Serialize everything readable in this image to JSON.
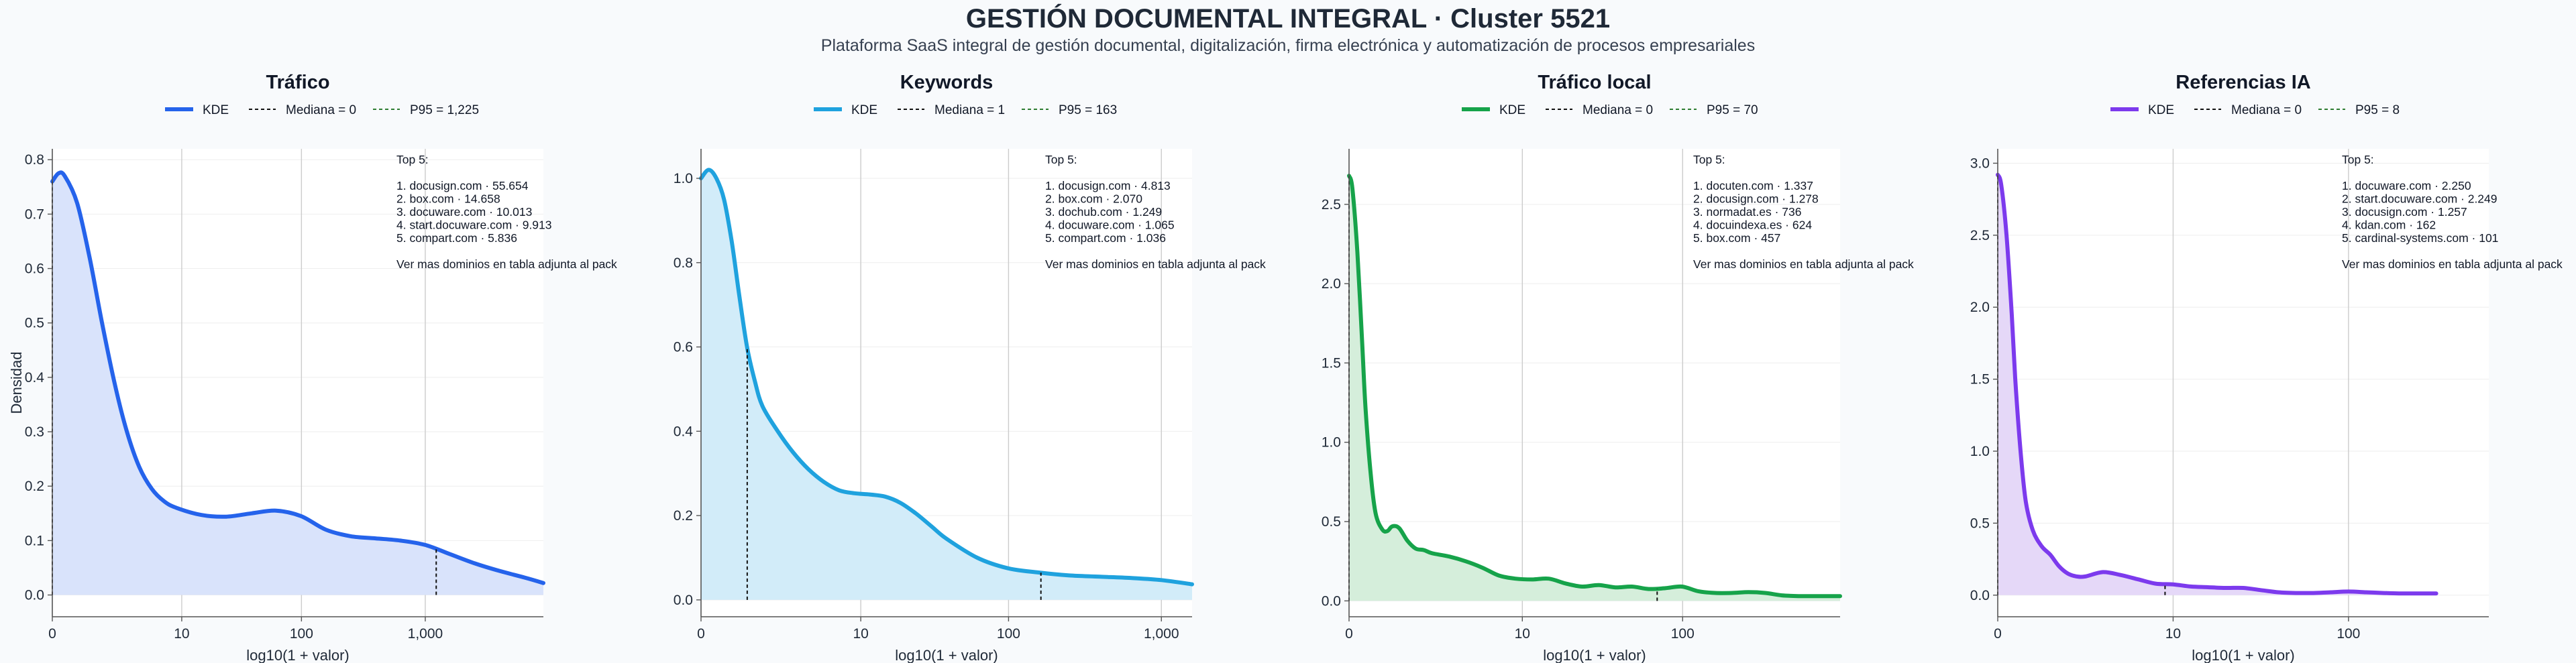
{
  "header": {
    "title": "GESTIÓN DOCUMENTAL INTEGRAL · Cluster 5521",
    "subtitle": "Plataforma SaaS integral de gestión documental, digitalización, firma electrónica y automatización de procesos empresariales"
  },
  "colors": {
    "background": "#f8fafc",
    "plot_background": "#ffffff",
    "grid": "#cccccc",
    "median_line": "#111111",
    "p95_line": "#2e7d32"
  },
  "chart_data": [
    {
      "type": "area",
      "title": "Tráfico",
      "color": "#2563eb",
      "fill": "#d9e3fb",
      "xlabel": "log10(1 + valor)",
      "ylabel": "Densidad",
      "xlim": [
        0,
        3.95
      ],
      "ylim": [
        -0.04,
        0.82
      ],
      "x_ticks": [
        {
          "pos": 0,
          "label": "0"
        },
        {
          "pos": 1.041,
          "label": "10"
        },
        {
          "pos": 2.004,
          "label": "100"
        },
        {
          "pos": 3.0,
          "label": "1,000"
        }
      ],
      "y_ticks": [
        0,
        0.1,
        0.2,
        0.3,
        0.4,
        0.5,
        0.6,
        0.7,
        0.8
      ],
      "y_tick_labels": [
        "0.0",
        "0.1",
        "0.2",
        "0.3",
        "0.4",
        "0.5",
        "0.6",
        "0.7",
        "0.8"
      ],
      "legend": {
        "kde": "KDE",
        "median": "Mediana = 0",
        "p95": "P95 = 1,225"
      },
      "median_x": 0,
      "p95_x": 3.088,
      "x": [
        0,
        0.05,
        0.1,
        0.2,
        0.3,
        0.4,
        0.5,
        0.6,
        0.7,
        0.8,
        0.9,
        1.0,
        1.2,
        1.4,
        1.6,
        1.8,
        2.0,
        2.2,
        2.4,
        2.6,
        2.8,
        3.0,
        3.2,
        3.4,
        3.6,
        3.8,
        3.95
      ],
      "y": [
        0.76,
        0.775,
        0.77,
        0.72,
        0.62,
        0.5,
        0.39,
        0.3,
        0.235,
        0.195,
        0.172,
        0.16,
        0.147,
        0.144,
        0.15,
        0.155,
        0.145,
        0.12,
        0.108,
        0.104,
        0.1,
        0.092,
        0.075,
        0.058,
        0.044,
        0.032,
        0.022
      ],
      "annotation": {
        "heading": "Top 5:",
        "items": [
          "1. docusign.com · 55.654",
          "2. box.com · 14.658",
          "3. docuware.com · 10.013",
          "4. start.docuware.com · 9.913",
          "5. compart.com · 5.836"
        ],
        "footer": "Ver mas dominios en tabla adjunta al pack"
      }
    },
    {
      "type": "area",
      "title": "Keywords",
      "color": "#1fa2de",
      "fill": "#d2ecf9",
      "xlabel": "log10(1 + valor)",
      "ylabel": "",
      "xlim": [
        0,
        3.2
      ],
      "ylim": [
        -0.04,
        1.07
      ],
      "x_ticks": [
        {
          "pos": 0,
          "label": "0"
        },
        {
          "pos": 1.041,
          "label": "10"
        },
        {
          "pos": 2.004,
          "label": "100"
        },
        {
          "pos": 3.0,
          "label": "1,000"
        }
      ],
      "y_ticks": [
        0,
        0.2,
        0.4,
        0.6,
        0.8,
        1.0
      ],
      "y_tick_labels": [
        "0.0",
        "0.2",
        "0.4",
        "0.6",
        "0.8",
        "1.0"
      ],
      "legend": {
        "kde": "KDE",
        "median": "Mediana = 1",
        "p95": "P95 = 163"
      },
      "median_x": 0.301,
      "p95_x": 2.215,
      "x": [
        0,
        0.05,
        0.1,
        0.15,
        0.2,
        0.25,
        0.3,
        0.35,
        0.4,
        0.5,
        0.6,
        0.7,
        0.8,
        0.9,
        1.0,
        1.1,
        1.2,
        1.3,
        1.4,
        1.5,
        1.6,
        1.8,
        2.0,
        2.2,
        2.4,
        2.6,
        2.8,
        3.0,
        3.2
      ],
      "y": [
        1.0,
        1.02,
        1.0,
        0.95,
        0.85,
        0.72,
        0.6,
        0.52,
        0.46,
        0.4,
        0.35,
        0.31,
        0.28,
        0.26,
        0.253,
        0.25,
        0.245,
        0.23,
        0.205,
        0.175,
        0.145,
        0.1,
        0.075,
        0.065,
        0.058,
        0.055,
        0.052,
        0.047,
        0.037
      ],
      "annotation": {
        "heading": "Top 5:",
        "items": [
          "1. docusign.com · 4.813",
          "2. box.com · 2.070",
          "3. dochub.com · 1.249",
          "4. docuware.com · 1.065",
          "5. compart.com · 1.036"
        ],
        "footer": "Ver mas dominios en tabla adjunta al pack"
      }
    },
    {
      "type": "area",
      "title": "Tráfico local",
      "color": "#16a34a",
      "fill": "#d5eedb",
      "xlabel": "log10(1 + valor)",
      "ylabel": "",
      "xlim": [
        0,
        2.95
      ],
      "ylim": [
        -0.1,
        2.85
      ],
      "x_ticks": [
        {
          "pos": 0,
          "label": "0"
        },
        {
          "pos": 1.041,
          "label": "10"
        },
        {
          "pos": 2.004,
          "label": "100"
        }
      ],
      "y_ticks": [
        0,
        0.5,
        1.0,
        1.5,
        2.0,
        2.5
      ],
      "y_tick_labels": [
        "0.0",
        "0.5",
        "1.0",
        "1.5",
        "2.0",
        "2.5"
      ],
      "legend": {
        "kde": "KDE",
        "median": "Mediana = 0",
        "p95": "P95 = 70"
      },
      "median_x": 0,
      "p95_x": 1.851,
      "x": [
        0,
        0.02,
        0.05,
        0.08,
        0.1,
        0.13,
        0.16,
        0.2,
        0.23,
        0.26,
        0.3,
        0.35,
        0.4,
        0.45,
        0.5,
        0.6,
        0.7,
        0.8,
        0.9,
        1.0,
        1.1,
        1.2,
        1.3,
        1.4,
        1.5,
        1.6,
        1.7,
        1.8,
        1.9,
        2.0,
        2.1,
        2.2,
        2.3,
        2.4,
        2.5,
        2.6,
        2.7,
        2.8,
        2.95
      ],
      "y": [
        2.68,
        2.6,
        2.2,
        1.6,
        1.2,
        0.8,
        0.55,
        0.45,
        0.44,
        0.47,
        0.46,
        0.38,
        0.33,
        0.32,
        0.3,
        0.28,
        0.25,
        0.21,
        0.16,
        0.14,
        0.135,
        0.14,
        0.11,
        0.09,
        0.1,
        0.085,
        0.09,
        0.075,
        0.08,
        0.09,
        0.06,
        0.05,
        0.05,
        0.055,
        0.05,
        0.035,
        0.03,
        0.03,
        0.03
      ],
      "annotation": {
        "heading": "Top 5:",
        "items": [
          "1. docuten.com · 1.337",
          "2. docusign.com · 1.278",
          "3. normadat.es · 736",
          "4. docuindexa.es · 624",
          "5. box.com · 457"
        ],
        "footer": "Ver mas dominios en tabla adjunta al pack"
      }
    },
    {
      "type": "area",
      "title": "Referencias IA",
      "color": "#7c3aed",
      "fill": "#e5d8f8",
      "xlabel": "log10(1 + valor)",
      "ylabel": "",
      "xlim": [
        0,
        2.8
      ],
      "ylim": [
        -0.15,
        3.1
      ],
      "x_ticks": [
        {
          "pos": 0,
          "label": "0"
        },
        {
          "pos": 1.0,
          "label": "10"
        },
        {
          "pos": 2.0,
          "label": "100"
        }
      ],
      "y_ticks": [
        0,
        0.5,
        1.0,
        1.5,
        2.0,
        2.5,
        3.0
      ],
      "y_tick_labels": [
        "0.0",
        "0.5",
        "1.0",
        "1.5",
        "2.0",
        "2.5",
        "3.0"
      ],
      "legend": {
        "kde": "KDE",
        "median": "Mediana = 0",
        "p95": "P95 = 8"
      },
      "median_x": 0,
      "p95_x": 0.954,
      "x": [
        0,
        0.02,
        0.05,
        0.08,
        0.1,
        0.13,
        0.16,
        0.2,
        0.25,
        0.3,
        0.35,
        0.4,
        0.45,
        0.5,
        0.6,
        0.7,
        0.8,
        0.9,
        1.0,
        1.1,
        1.2,
        1.3,
        1.4,
        1.5,
        1.6,
        1.7,
        1.8,
        1.9,
        2.0,
        2.1,
        2.2,
        2.3,
        2.4,
        2.5
      ],
      "y": [
        2.92,
        2.85,
        2.5,
        1.95,
        1.5,
        1.0,
        0.65,
        0.45,
        0.34,
        0.28,
        0.2,
        0.15,
        0.13,
        0.13,
        0.16,
        0.14,
        0.11,
        0.08,
        0.075,
        0.06,
        0.055,
        0.05,
        0.05,
        0.035,
        0.02,
        0.015,
        0.015,
        0.02,
        0.025,
        0.02,
        0.015,
        0.012,
        0.012,
        0.012
      ],
      "annotation": {
        "heading": "Top 5:",
        "items": [
          "1. docuware.com · 2.250",
          "2. start.docuware.com · 2.249",
          "3. docusign.com · 1.257",
          "4. kdan.com · 162",
          "5. cardinal-systems.com · 101"
        ],
        "footer": "Ver mas dominios en tabla adjunta al pack"
      }
    }
  ]
}
